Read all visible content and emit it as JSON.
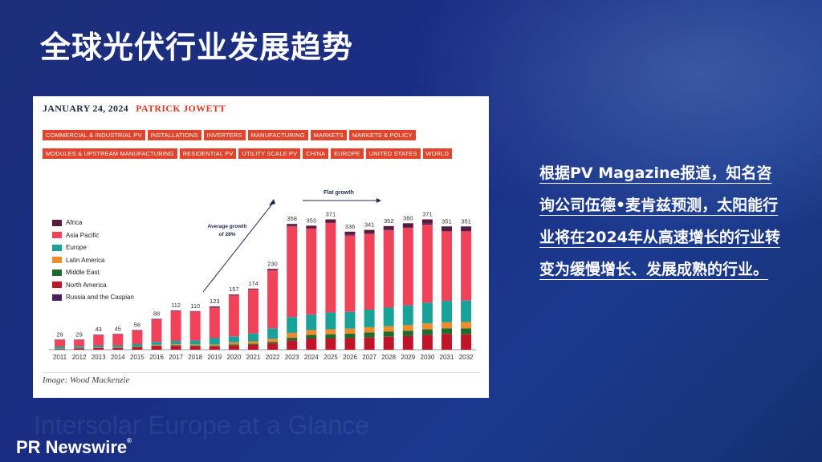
{
  "slide": {
    "title": "全球光伏行业发展趋势",
    "watermark": "Intersolar Europe at a Glance",
    "brand": "PR Newswire",
    "brand_mark": "®",
    "body_text": "根据PV Magazine报道，知名咨询公司伍德•麦肯兹预测，太阳能行业将在2024年从高速增长的行业转变为缓慢增长、发展成熟的行业。"
  },
  "article": {
    "date": "JANUARY 24, 2024",
    "author": "PATRICK JOWETT",
    "tags": [
      "COMMERCIAL & INDUSTRIAL PV",
      "INSTALLATIONS",
      "INVERTERS",
      "MANUFACTURING",
      "MARKETS",
      "MARKETS & POLICY",
      "MODULES & UPSTREAM MANUFACTURING",
      "RESIDENTIAL PV",
      "UTILITY SCALE PV",
      "CHINA",
      "EUROPE",
      "UNITED STATES",
      "WORLD"
    ],
    "caption": "Image: Wood Mackenzie"
  },
  "chart_data": {
    "type": "bar",
    "stacked": true,
    "categories": [
      "2011",
      "2012",
      "2013",
      "2014",
      "2015",
      "2016",
      "2017",
      "2018",
      "2019",
      "2020",
      "2021",
      "2022",
      "2023",
      "2024",
      "2025",
      "2026",
      "2027",
      "2028",
      "2029",
      "2030",
      "2031",
      "2032"
    ],
    "totals": [
      29,
      29,
      43,
      45,
      56,
      88,
      112,
      110,
      123,
      157,
      174,
      230,
      358,
      353,
      371,
      336,
      341,
      352,
      360,
      371,
      351,
      351
    ],
    "series": [
      {
        "name": "Africa",
        "color": "#5a1a3c",
        "values": [
          0.5,
          0.5,
          0.5,
          0.5,
          1,
          1,
          1,
          1,
          2,
          2,
          2,
          3,
          5,
          6,
          8,
          9,
          9,
          10,
          11,
          12,
          12,
          12
        ]
      },
      {
        "name": "Asia Pacific",
        "color": "#f0435a",
        "values": [
          19,
          18,
          30,
          32,
          38,
          64,
          85,
          82,
          87,
          116,
          125,
          165,
          258,
          245,
          255,
          217,
          216,
          220,
          221,
          222,
          198,
          197
        ]
      },
      {
        "name": "Europe",
        "color": "#18a29a",
        "values": [
          6,
          5,
          5,
          5,
          7,
          8,
          9,
          11,
          18,
          17,
          22,
          30,
          45,
          44,
          48,
          48,
          50,
          53,
          56,
          59,
          61,
          61
        ]
      },
      {
        "name": "Latin America",
        "color": "#f08a2a",
        "values": [
          0.5,
          0.5,
          1,
          1,
          1,
          2,
          3,
          3,
          4,
          6,
          7,
          9,
          14,
          14,
          14,
          14,
          15,
          15,
          16,
          17,
          17,
          18
        ]
      },
      {
        "name": "Middle East",
        "color": "#1d6b2f",
        "values": [
          0.5,
          0.5,
          0.5,
          0.5,
          1,
          1,
          2,
          2,
          2,
          3,
          3,
          4,
          8,
          10,
          12,
          13,
          14,
          15,
          15,
          16,
          16,
          17
        ]
      },
      {
        "name": "North America",
        "color": "#c01428",
        "values": [
          2,
          4,
          5,
          5,
          7,
          11,
          11,
          10,
          9,
          12,
          14,
          18,
          26,
          32,
          32,
          33,
          35,
          37,
          39,
          42,
          45,
          44
        ]
      },
      {
        "name": "Russia and the Caspian",
        "color": "#4a2060",
        "values": [
          0.5,
          0.5,
          1,
          1,
          1,
          1,
          1,
          1,
          1,
          1,
          1,
          1,
          2,
          2,
          2,
          2,
          2,
          2,
          2,
          3,
          2,
          2
        ]
      }
    ],
    "annotations": {
      "growth_label": "Average growth\nof 28%",
      "flat_label": "Flat growth"
    }
  }
}
